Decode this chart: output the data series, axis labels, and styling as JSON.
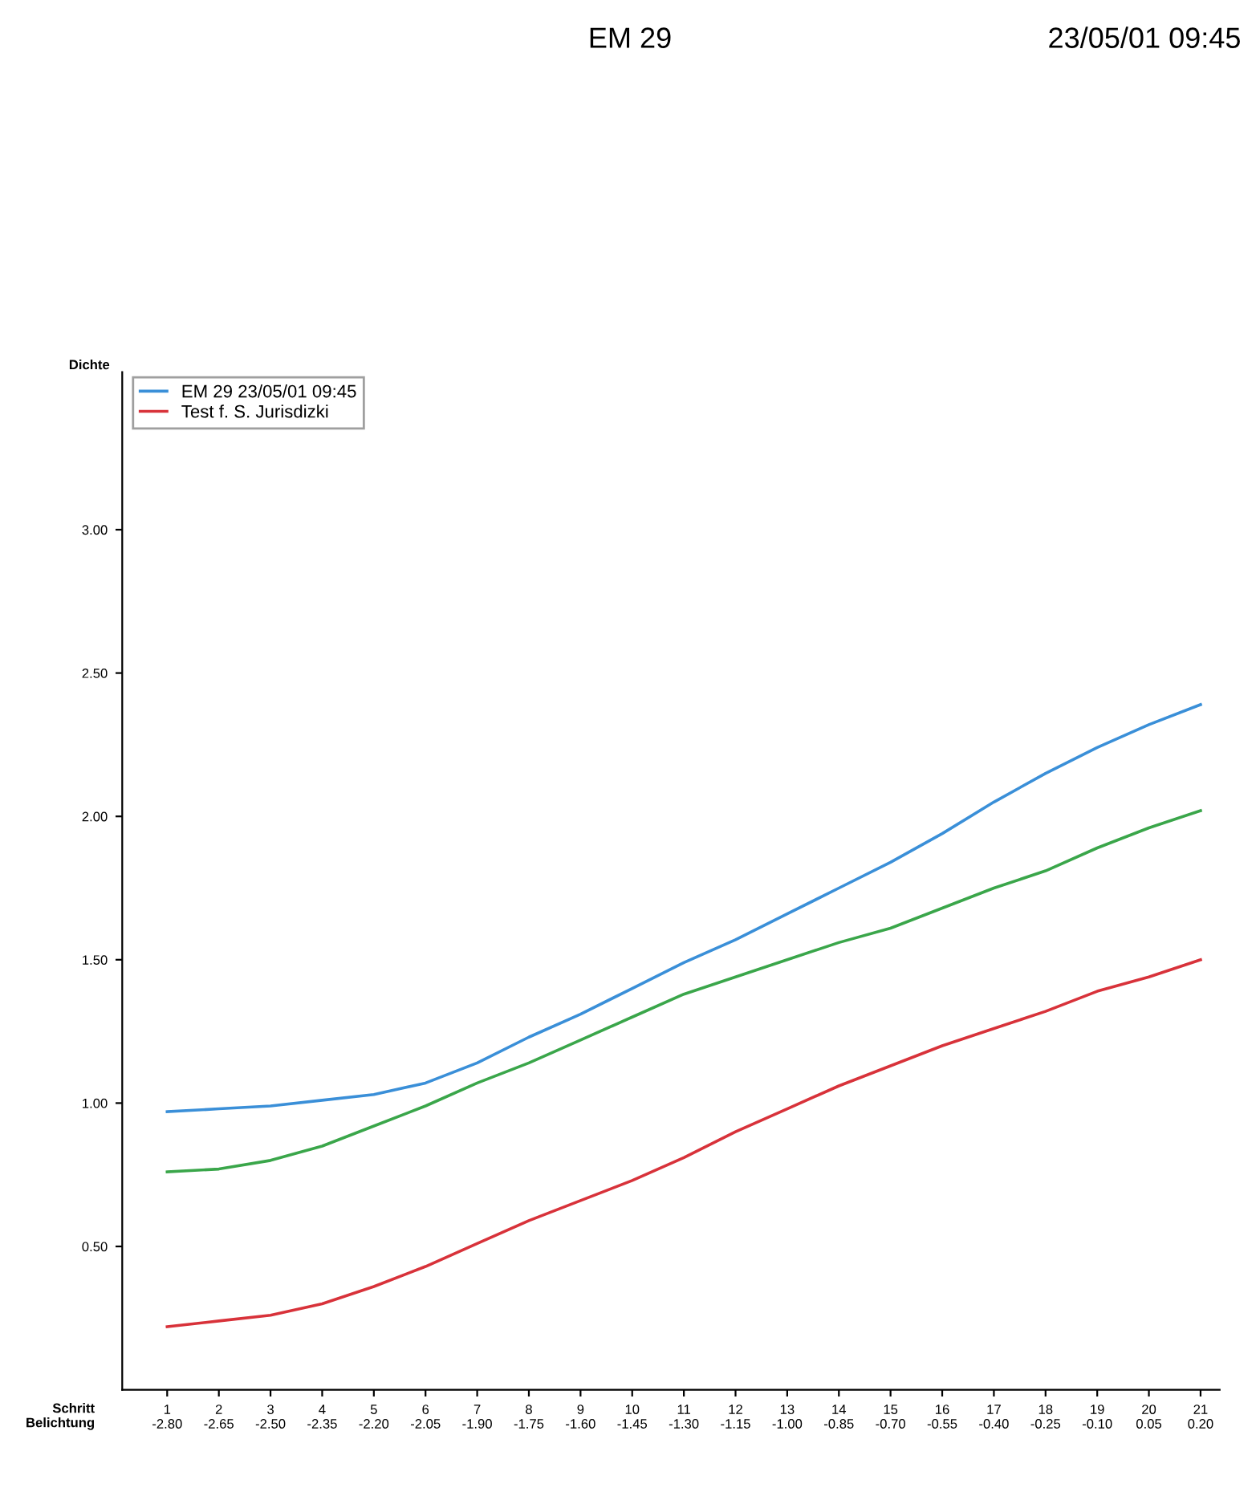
{
  "chart_data": {
    "type": "line",
    "title": "EM 29",
    "subtitle": "23/05/01 09:45",
    "ylabel": "Dichte",
    "xlabel": "Schritt\nBelichtung",
    "categories": [
      "1\n-2.80",
      "2\n-2.65",
      "3\n-2.50",
      "4\n-2.35",
      "5\n-2.20",
      "6\n-2.05",
      "7\n-1.90",
      "8\n-1.75",
      "9\n-1.60",
      "10\n-1.45",
      "11\n-1.30",
      "12\n-1.15",
      "13\n-1.00",
      "14\n-0.85",
      "15\n-0.70",
      "16\n-0.55",
      "17\n-0.40",
      "18\n-0.25",
      "19\n-0.10",
      "20\n0.05",
      "21\n0.20"
    ],
    "series": [
      {
        "name": "EM 29 23/05/01 09:45",
        "color": "#3a8fd8",
        "values": [
          0.97,
          0.98,
          0.99,
          1.01,
          1.03,
          1.07,
          1.14,
          1.23,
          1.31,
          1.4,
          1.49,
          1.57,
          1.66,
          1.75,
          1.84,
          1.94,
          2.05,
          2.15,
          2.24,
          2.32,
          2.39
        ]
      },
      {
        "color": "#3aa64a",
        "values": [
          0.76,
          0.77,
          0.8,
          0.85,
          0.92,
          0.99,
          1.07,
          1.14,
          1.22,
          1.3,
          1.38,
          1.44,
          1.5,
          1.56,
          1.61,
          1.68,
          1.75,
          1.81,
          1.89,
          1.96,
          2.02
        ]
      },
      {
        "name": "Test f. S. Jurisdizki",
        "color": "#d8323a",
        "values": [
          0.22,
          0.24,
          0.26,
          0.3,
          0.36,
          0.43,
          0.51,
          0.59,
          0.66,
          0.73,
          0.81,
          0.9,
          0.98,
          1.06,
          1.13,
          1.2,
          1.26,
          1.32,
          1.39,
          1.44,
          1.5
        ]
      }
    ],
    "ylim": [
      0,
      3.55
    ],
    "yticks": [
      {
        "value": 0.5,
        "label": "0.50"
      },
      {
        "value": 1,
        "label": "1.00"
      },
      {
        "value": 1.5,
        "label": "1.50"
      },
      {
        "value": 2,
        "label": "2.00"
      },
      {
        "value": 2.5,
        "label": "2.50"
      },
      {
        "value": 3,
        "label": "3.00"
      }
    ],
    "grid": false,
    "legend": "top left",
    "marker": "none",
    "line_style": "solid"
  }
}
